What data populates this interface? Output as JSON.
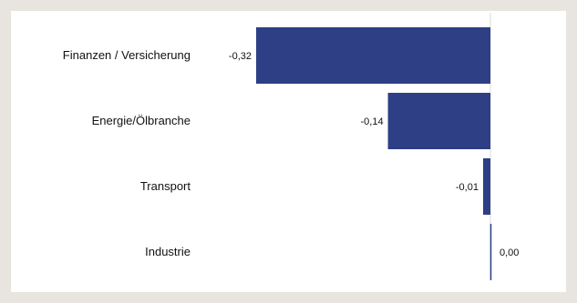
{
  "chart_data": {
    "type": "bar",
    "orientation": "horizontal",
    "categories": [
      "Finanzen / Versicherung",
      "Energie/Ölbranche",
      "Transport",
      "Industrie"
    ],
    "values": [
      -0.32,
      -0.14,
      -0.01,
      0.0
    ],
    "value_labels": [
      "-0,32",
      "-0,14",
      "-0,01",
      "0,00"
    ],
    "xlim": [
      -0.32,
      0.1
    ],
    "grid": false,
    "legend": "none",
    "bar_color": "#2e3f86",
    "zero_line_color": "#d9d9d9",
    "panel_background": "#ffffff",
    "page_background": "#e8e4df"
  }
}
